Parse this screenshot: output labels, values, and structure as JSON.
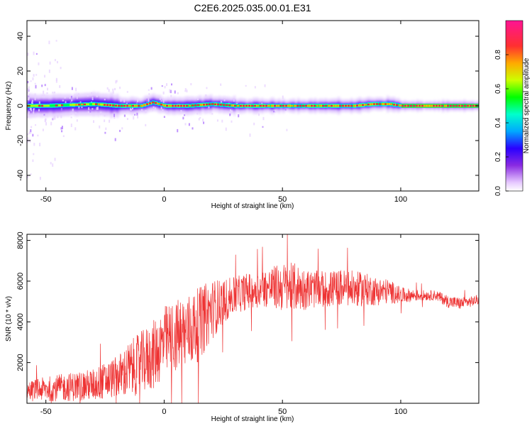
{
  "title": "C2E6.2025.035.00.01.E31",
  "chart_data": [
    {
      "type": "heatmap",
      "xlabel": "Height of straight line (km)",
      "ylabel": "Frequency (Hz)",
      "xlim": [
        -58,
        133
      ],
      "ylim": [
        -49,
        49
      ],
      "xticks": [
        -50,
        0,
        50,
        100
      ],
      "yticks": [
        -40,
        -20,
        0,
        20,
        40
      ],
      "colorbar": {
        "label": "Normalized spectral amplitude",
        "range": [
          0,
          1
        ],
        "ticks": [
          0.0,
          0.2,
          0.4,
          0.6,
          0.8
        ],
        "tick_labels": [
          "0.0",
          "0.2",
          "0.4",
          "0.6",
          "0.8"
        ],
        "colormap": [
          "#ffffff",
          "#e6c8ff",
          "#8a2be2",
          "#2a00ff",
          "#00a8ff",
          "#00ffcc",
          "#00ff00",
          "#ccff00",
          "#ffaa00",
          "#ff3030",
          "#ff1493"
        ]
      },
      "ridge": {
        "description_values": "dominant frequency along height",
        "x": [
          -58,
          -50,
          -40,
          -30,
          -20,
          -10,
          -5,
          0,
          10,
          20,
          30,
          40,
          50,
          60,
          70,
          80,
          88,
          95,
          100,
          133
        ],
        "y": [
          0,
          0,
          0.5,
          1,
          0,
          0,
          2,
          0,
          0,
          1,
          0,
          0,
          0,
          0,
          0,
          0,
          1,
          1,
          0,
          0
        ]
      }
    },
    {
      "type": "line",
      "xlabel": "Height of straight line (km)",
      "ylabel": "SNR (10 * v/v)",
      "xlim": [
        -58,
        133
      ],
      "ylim": [
        0,
        8300
      ],
      "xticks": [
        -50,
        0,
        50,
        100
      ],
      "yticks": [
        2000,
        4000,
        6000,
        8000
      ],
      "line_color": "#ee3333",
      "envelope": {
        "x": [
          -58,
          -50,
          -40,
          -30,
          -20,
          -15,
          -10,
          -5,
          0,
          5,
          10,
          15,
          20,
          25,
          30,
          35,
          40,
          45,
          50,
          55,
          60,
          65,
          70,
          75,
          80,
          85,
          90,
          95,
          100,
          105,
          110,
          115,
          120,
          125,
          130,
          133
        ],
        "mean": [
          600,
          700,
          800,
          900,
          1300,
          1600,
          2000,
          2300,
          3000,
          3300,
          3500,
          3900,
          4600,
          5000,
          5300,
          5500,
          5600,
          5700,
          5700,
          5700,
          5600,
          5600,
          5600,
          5700,
          5600,
          5600,
          5500,
          5500,
          5300,
          5300,
          5300,
          5300,
          5000,
          4900,
          5000,
          5100
        ],
        "spread": [
          500,
          600,
          700,
          800,
          1000,
          1400,
          1500,
          1700,
          1800,
          1800,
          1900,
          1800,
          1500,
          1100,
          900,
          900,
          900,
          1000,
          1200,
          1200,
          1000,
          900,
          900,
          900,
          900,
          800,
          700,
          600,
          400,
          300,
          250,
          250,
          300,
          300,
          250,
          250
        ]
      }
    }
  ]
}
